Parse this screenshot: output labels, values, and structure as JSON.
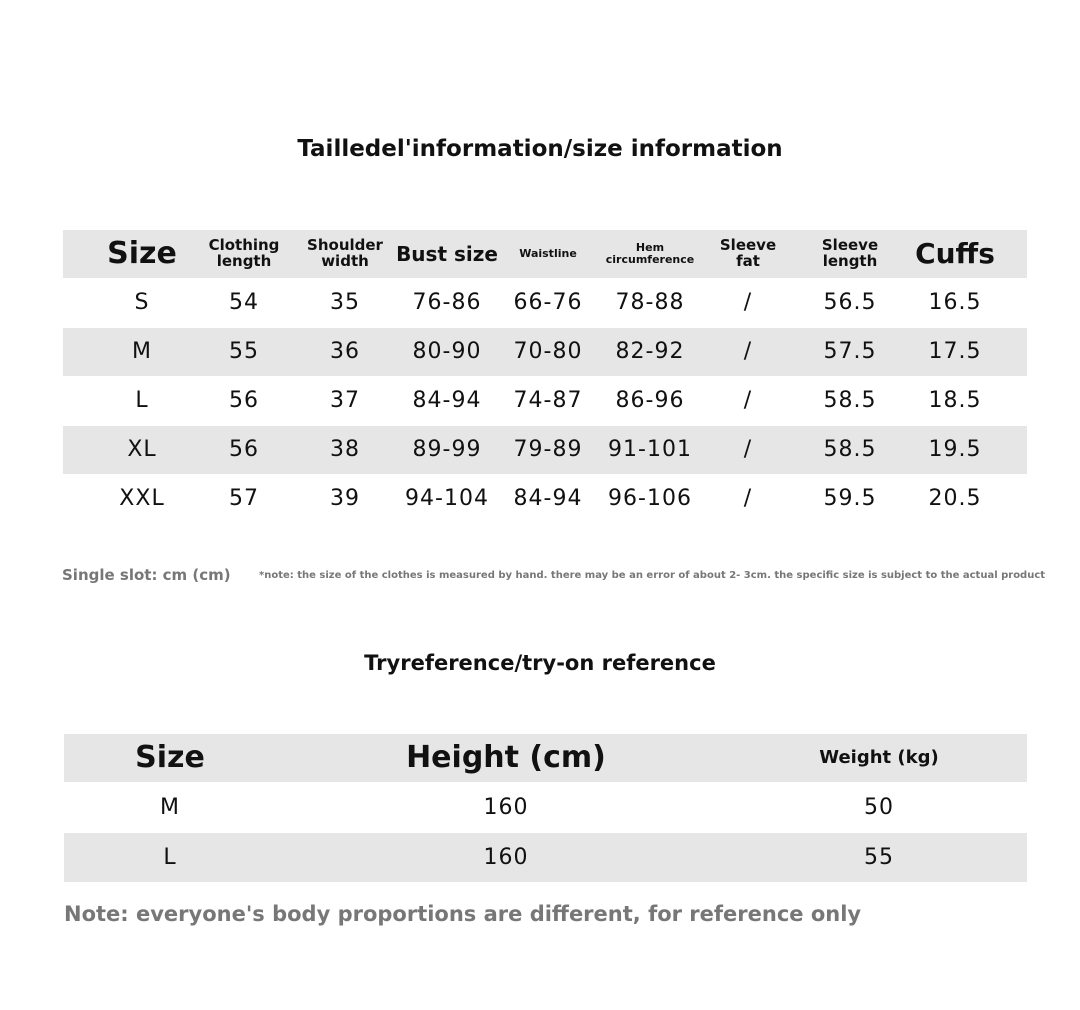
{
  "size_table": {
    "title": "Tailledel'information/size information",
    "headers": [
      "Size",
      "Clothing length",
      "Shoulder width",
      "Bust size",
      "Waistline",
      "Hem circumference",
      "Sleeve fat",
      "Sleeve length",
      "Cuffs"
    ],
    "rows": [
      [
        "S",
        "54",
        "35",
        "76-86",
        "66-76",
        "78-88",
        "/",
        "56.5",
        "16.5"
      ],
      [
        "M",
        "55",
        "36",
        "80-90",
        "70-80",
        "82-92",
        "/",
        "57.5",
        "17.5"
      ],
      [
        "L",
        "56",
        "37",
        "84-94",
        "74-87",
        "86-96",
        "/",
        "58.5",
        "18.5"
      ],
      [
        "XL",
        "56",
        "38",
        "89-99",
        "79-89",
        "91-101",
        "/",
        "58.5",
        "19.5"
      ],
      [
        "XXL",
        "57",
        "39",
        "94-104",
        "84-94",
        "96-106",
        "/",
        "59.5",
        "20.5"
      ]
    ],
    "unit": "Single slot: cm (cm)",
    "footnote": "*note: the size of the clothes is measured by hand. there may be an error of about 2- 3cm. the specific size is subject to the actual product"
  },
  "tryon_table": {
    "title": "Tryreference/try-on reference",
    "headers": [
      "Size",
      "Height (cm)",
      "Weight (kg)"
    ],
    "rows": [
      [
        "M",
        "160",
        "50"
      ],
      [
        "L",
        "160",
        "55"
      ]
    ],
    "note": "Note: everyone's body proportions are different, for reference only"
  }
}
